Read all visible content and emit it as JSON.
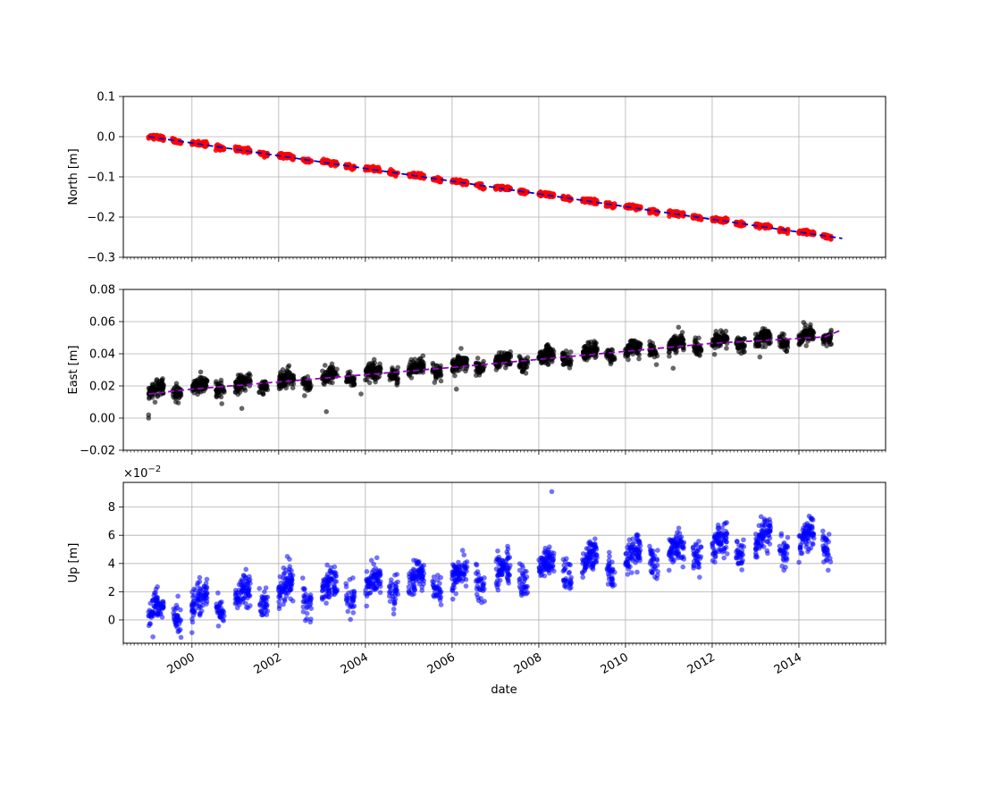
{
  "chart_data": {
    "type": "scatter",
    "x_axis": {
      "label": "date",
      "range": [
        "1998-06-01",
        "2016-01-01"
      ],
      "major_ticks": [
        "2000",
        "2002",
        "2004",
        "2006",
        "2008",
        "2010",
        "2012",
        "2014"
      ],
      "minor_ticks": "monthly",
      "tick_label_rotation_deg": 30,
      "shared": true
    },
    "panels": [
      {
        "name": "north",
        "ylabel": "North [m]",
        "ylim": [
          -0.3,
          0.1
        ],
        "yticks": [
          "0.1",
          "0.0",
          "−0.1",
          "−0.2",
          "−0.3"
        ],
        "grid": true,
        "points_color": "#ff0000",
        "points_opacity": 0.85,
        "fit_color": "#0000cc",
        "fit_style": "dashed",
        "fit_line": [
          {
            "x": "1999.0",
            "y": 0.0
          },
          {
            "x": "2015.0",
            "y": -0.253
          }
        ],
        "seasonal_amplitude": 0.002,
        "noise": 0.0025,
        "density_per_year": 120
      },
      {
        "name": "east",
        "ylabel": "East [m]",
        "ylim": [
          -0.02,
          0.08
        ],
        "yticks": [
          "0.08",
          "0.06",
          "0.04",
          "0.02",
          "0.00",
          "−0.02"
        ],
        "grid": true,
        "points_color": "#000000",
        "points_opacity": 0.6,
        "fit_color": "#9900cc",
        "fit_style": "dashed",
        "fit_line": [
          {
            "x": "1999.0",
            "y": 0.015
          },
          {
            "x": "2000.0",
            "y": 0.018
          },
          {
            "x": "2002.0",
            "y": 0.0225
          },
          {
            "x": "2004.0",
            "y": 0.027
          },
          {
            "x": "2006.0",
            "y": 0.0315
          },
          {
            "x": "2008.0",
            "y": 0.0365
          },
          {
            "x": "2010.0",
            "y": 0.0415
          },
          {
            "x": "2012.0",
            "y": 0.0465
          },
          {
            "x": "2014.0",
            "y": 0.0495
          },
          {
            "x": "2014.6",
            "y": 0.0505
          },
          {
            "x": "2015.0",
            "y": 0.055
          }
        ],
        "seasonal_amplitude": 0.0025,
        "noise": 0.0025,
        "density_per_year": 120,
        "outliers": [
          {
            "x": "1999.0",
            "y": 0.0
          },
          {
            "x": "1999.0",
            "y": 0.002
          },
          {
            "x": "2001.15",
            "y": 0.006
          },
          {
            "x": "2003.1",
            "y": 0.004
          },
          {
            "x": "2003.9",
            "y": 0.015
          },
          {
            "x": "2006.1",
            "y": 0.018
          },
          {
            "x": "2011.1",
            "y": 0.031
          },
          {
            "x": "2013.1",
            "y": 0.038
          }
        ]
      },
      {
        "name": "up",
        "ylabel": "Up [m]",
        "ylim": [
          -1.65,
          9.75
        ],
        "scale": 0.01,
        "offset_text": "×10",
        "offset_exponent": "−2",
        "yticks": [
          "8",
          "6",
          "4",
          "2",
          "0"
        ],
        "grid": true,
        "points_color": "#0000ff",
        "points_opacity": 0.55,
        "fit_line": [
          {
            "x": "1999.0",
            "y": 0.2
          },
          {
            "x": "2000.0",
            "y": 0.9
          },
          {
            "x": "2002.0",
            "y": 1.8
          },
          {
            "x": "2004.0",
            "y": 2.2
          },
          {
            "x": "2006.0",
            "y": 2.8
          },
          {
            "x": "2008.0",
            "y": 3.4
          },
          {
            "x": "2010.0",
            "y": 4.2
          },
          {
            "x": "2012.0",
            "y": 5.0
          },
          {
            "x": "2014.0",
            "y": 5.5
          },
          {
            "x": "2015.0",
            "y": 5.5
          }
        ],
        "seasonal_amplitude": 0.7,
        "noise": 0.55,
        "density_per_year": 110,
        "outliers": [
          {
            "x": "2008.3",
            "y": 9.1
          },
          {
            "x": "2002.2",
            "y": 4.5
          },
          {
            "x": "2002.25",
            "y": 4.3
          },
          {
            "x": "1999.1",
            "y": -1.2
          },
          {
            "x": "2000.0",
            "y": -0.9
          }
        ]
      }
    ]
  }
}
